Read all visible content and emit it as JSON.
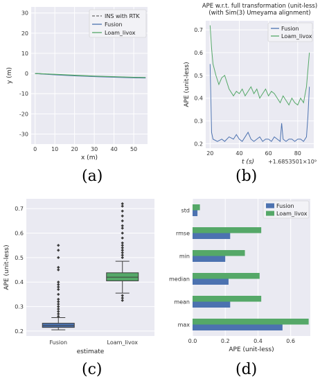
{
  "colors": {
    "fusion": "#4c72b0",
    "loam": "#55a868",
    "rtk": "#666666",
    "panel_bg": "#eaeaf2",
    "grid": "#ffffff"
  },
  "panel_labels": [
    "(a)",
    "(b)",
    "(c)",
    "(d)"
  ],
  "chart_data": [
    {
      "type": "line",
      "id": "a",
      "xlabel": "x (m)",
      "ylabel": "y (m)",
      "xlim": [
        -2,
        57
      ],
      "ylim": [
        -35,
        33
      ],
      "xticks": [
        0,
        10,
        20,
        30,
        40,
        50
      ],
      "yticks": [
        30,
        20,
        10,
        0,
        -10,
        -20,
        -30
      ],
      "legend_position": "top-right",
      "series": [
        {
          "name": "INS with RTK",
          "style": "dashed",
          "x": [
            0,
            10,
            20,
            30,
            40,
            50,
            56
          ],
          "y": [
            0.0,
            -0.5,
            -1.0,
            -1.4,
            -1.7,
            -2.0,
            -2.1
          ]
        },
        {
          "name": "Fusion",
          "style": "solid",
          "x": [
            0,
            10,
            20,
            30,
            40,
            50,
            56
          ],
          "y": [
            0.0,
            -0.6,
            -1.1,
            -1.5,
            -1.8,
            -2.1,
            -2.2
          ]
        },
        {
          "name": "Loam_livox",
          "style": "solid",
          "x": [
            0,
            10,
            20,
            30,
            40,
            50,
            56
          ],
          "y": [
            0.0,
            -0.4,
            -0.9,
            -1.3,
            -1.6,
            -1.9,
            -2.0
          ]
        }
      ]
    },
    {
      "type": "line",
      "id": "b",
      "title_lines": [
        "APE w.r.t. full transformation (unit-less)",
        "(with Sim(3) Umeyama alignment)"
      ],
      "xlabel": "t (s)",
      "x_offset_label": "+1.6853501×10⁹",
      "ylabel": "APE (unit-less)",
      "xlim": [
        17,
        91
      ],
      "ylim": [
        0.18,
        0.74
      ],
      "xticks": [
        20,
        40,
        60,
        80
      ],
      "yticks": [
        0.2,
        0.3,
        0.4,
        0.5,
        0.6,
        0.7
      ],
      "legend_position": "top-right",
      "series": [
        {
          "name": "Fusion",
          "x": [
            20,
            20.5,
            21,
            22,
            25,
            28,
            30,
            33,
            36,
            38,
            40,
            42,
            44,
            46,
            48,
            50,
            52,
            54,
            56,
            58,
            60,
            62,
            64,
            66,
            68,
            69,
            70,
            72,
            74,
            76,
            78,
            80,
            82,
            84,
            86,
            87,
            88
          ],
          "y": [
            0.55,
            0.4,
            0.25,
            0.22,
            0.21,
            0.22,
            0.21,
            0.23,
            0.22,
            0.24,
            0.22,
            0.21,
            0.23,
            0.25,
            0.22,
            0.21,
            0.22,
            0.23,
            0.21,
            0.22,
            0.22,
            0.21,
            0.23,
            0.22,
            0.21,
            0.29,
            0.22,
            0.21,
            0.22,
            0.22,
            0.21,
            0.22,
            0.22,
            0.21,
            0.23,
            0.32,
            0.45
          ]
        },
        {
          "name": "Loam_livox",
          "x": [
            20,
            21,
            22,
            24,
            26,
            28,
            30,
            33,
            36,
            38,
            40,
            42,
            44,
            46,
            48,
            50,
            52,
            54,
            56,
            58,
            60,
            62,
            64,
            66,
            68,
            70,
            72,
            74,
            76,
            78,
            80,
            82,
            84,
            86,
            88
          ],
          "y": [
            0.72,
            0.62,
            0.55,
            0.5,
            0.46,
            0.49,
            0.5,
            0.44,
            0.41,
            0.43,
            0.42,
            0.44,
            0.41,
            0.43,
            0.45,
            0.42,
            0.44,
            0.4,
            0.42,
            0.44,
            0.41,
            0.43,
            0.42,
            0.4,
            0.38,
            0.41,
            0.39,
            0.37,
            0.4,
            0.38,
            0.37,
            0.4,
            0.38,
            0.45,
            0.6
          ]
        }
      ]
    },
    {
      "type": "box",
      "id": "c",
      "xlabel": "estimate",
      "ylabel": "APE (unit-less)",
      "ylim": [
        0.18,
        0.74
      ],
      "yticks": [
        0.2,
        0.3,
        0.4,
        0.5,
        0.6,
        0.7
      ],
      "categories": [
        "Fusion",
        "Loam_livox"
      ],
      "boxes": [
        {
          "q1": 0.215,
          "median": 0.222,
          "q3": 0.232,
          "whisker_low": 0.205,
          "whisker_high": 0.255,
          "outliers": [
            0.26,
            0.27,
            0.28,
            0.29,
            0.3,
            0.31,
            0.32,
            0.33,
            0.35,
            0.37,
            0.38,
            0.39,
            0.4,
            0.45,
            0.46,
            0.5,
            0.53,
            0.55
          ]
        },
        {
          "q1": 0.405,
          "median": 0.42,
          "q3": 0.438,
          "whisker_low": 0.355,
          "whisker_high": 0.485,
          "outliers": [
            0.325,
            0.335,
            0.345,
            0.5,
            0.51,
            0.52,
            0.53,
            0.54,
            0.55,
            0.56,
            0.58,
            0.6,
            0.62,
            0.63,
            0.65,
            0.67,
            0.69,
            0.71,
            0.72
          ]
        }
      ]
    },
    {
      "type": "bar",
      "id": "d",
      "orientation": "horizontal",
      "xlabel": "APE (unit-less)",
      "xlim": [
        0,
        0.72
      ],
      "xticks": [
        0.0,
        0.2,
        0.4,
        0.6
      ],
      "xtick_labels": [
        "0.0",
        "0.2",
        "0.4",
        "0.6"
      ],
      "categories": [
        "std",
        "rmse",
        "min",
        "median",
        "mean",
        "max"
      ],
      "legend_position": "top-right",
      "series": [
        {
          "name": "Fusion",
          "values": [
            0.03,
            0.23,
            0.2,
            0.22,
            0.23,
            0.55
          ]
        },
        {
          "name": "Loam_livox",
          "values": [
            0.045,
            0.42,
            0.32,
            0.41,
            0.42,
            0.71
          ]
        }
      ]
    }
  ]
}
